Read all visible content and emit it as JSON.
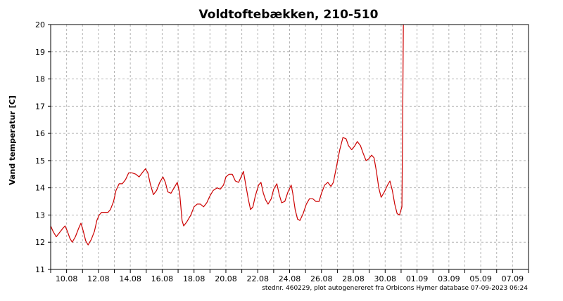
{
  "chart_data": {
    "type": "line",
    "title": "Voldtoftebækken, 210-510",
    "xlabel": "",
    "ylabel": "Vand temperatur [C]",
    "footer": "stednr. 460229, plot autogenereret fra Orbicons Hymer database 07-09-2023 06:24",
    "x_unit": "day of month (August = 9.x, September = 32.x)",
    "xlim": [
      9.0,
      39.0
    ],
    "ylim": [
      11,
      20
    ],
    "y_ticks": [
      11,
      12,
      13,
      14,
      15,
      16,
      17,
      18,
      19,
      20
    ],
    "x_ticks": [
      {
        "label": "10.08",
        "x": 10
      },
      {
        "label": "12.08",
        "x": 12
      },
      {
        "label": "14.08",
        "x": 14
      },
      {
        "label": "16.08",
        "x": 16
      },
      {
        "label": "18.08",
        "x": 18
      },
      {
        "label": "20.08",
        "x": 20
      },
      {
        "label": "22.08",
        "x": 22
      },
      {
        "label": "24.08",
        "x": 24
      },
      {
        "label": "26.08",
        "x": 26
      },
      {
        "label": "28.08",
        "x": 28
      },
      {
        "label": "30.08",
        "x": 30
      },
      {
        "label": "01.09",
        "x": 32
      },
      {
        "label": "03.09",
        "x": 34
      },
      {
        "label": "05.09",
        "x": 36
      },
      {
        "label": "07.09",
        "x": 38
      }
    ],
    "grid": true,
    "line_color": "#cc0000",
    "series": [
      {
        "name": "",
        "points": [
          [
            9.0,
            12.6
          ],
          [
            9.15,
            12.4
          ],
          [
            9.35,
            12.2
          ],
          [
            9.55,
            12.35
          ],
          [
            9.75,
            12.5
          ],
          [
            9.9,
            12.6
          ],
          [
            10.05,
            12.4
          ],
          [
            10.2,
            12.15
          ],
          [
            10.35,
            12.0
          ],
          [
            10.55,
            12.2
          ],
          [
            10.75,
            12.5
          ],
          [
            10.9,
            12.7
          ],
          [
            11.05,
            12.4
          ],
          [
            11.2,
            12.05
          ],
          [
            11.35,
            11.9
          ],
          [
            11.55,
            12.1
          ],
          [
            11.75,
            12.4
          ],
          [
            11.9,
            12.8
          ],
          [
            12.05,
            13.0
          ],
          [
            12.2,
            13.1
          ],
          [
            12.4,
            13.1
          ],
          [
            12.6,
            13.1
          ],
          [
            12.75,
            13.2
          ],
          [
            12.95,
            13.5
          ],
          [
            13.1,
            13.9
          ],
          [
            13.3,
            14.15
          ],
          [
            13.5,
            14.15
          ],
          [
            13.7,
            14.3
          ],
          [
            13.9,
            14.55
          ],
          [
            14.1,
            14.55
          ],
          [
            14.35,
            14.5
          ],
          [
            14.55,
            14.4
          ],
          [
            14.75,
            14.55
          ],
          [
            14.95,
            14.7
          ],
          [
            15.1,
            14.55
          ],
          [
            15.25,
            14.15
          ],
          [
            15.45,
            13.75
          ],
          [
            15.65,
            13.9
          ],
          [
            15.85,
            14.2
          ],
          [
            16.05,
            14.4
          ],
          [
            16.2,
            14.2
          ],
          [
            16.35,
            13.85
          ],
          [
            16.55,
            13.8
          ],
          [
            16.75,
            14.0
          ],
          [
            16.95,
            14.2
          ],
          [
            17.1,
            13.8
          ],
          [
            17.25,
            12.8
          ],
          [
            17.35,
            12.6
          ],
          [
            17.55,
            12.75
          ],
          [
            17.8,
            13.0
          ],
          [
            18.0,
            13.3
          ],
          [
            18.2,
            13.4
          ],
          [
            18.4,
            13.4
          ],
          [
            18.6,
            13.3
          ],
          [
            18.8,
            13.45
          ],
          [
            19.0,
            13.7
          ],
          [
            19.2,
            13.9
          ],
          [
            19.45,
            14.0
          ],
          [
            19.65,
            13.95
          ],
          [
            19.85,
            14.1
          ],
          [
            20.0,
            14.4
          ],
          [
            20.2,
            14.5
          ],
          [
            20.4,
            14.5
          ],
          [
            20.6,
            14.25
          ],
          [
            20.8,
            14.2
          ],
          [
            20.95,
            14.4
          ],
          [
            21.1,
            14.6
          ],
          [
            21.25,
            14.1
          ],
          [
            21.4,
            13.6
          ],
          [
            21.55,
            13.2
          ],
          [
            21.7,
            13.3
          ],
          [
            21.85,
            13.7
          ],
          [
            22.05,
            14.1
          ],
          [
            22.2,
            14.2
          ],
          [
            22.35,
            13.8
          ],
          [
            22.5,
            13.55
          ],
          [
            22.65,
            13.4
          ],
          [
            22.85,
            13.6
          ],
          [
            23.0,
            13.95
          ],
          [
            23.2,
            14.15
          ],
          [
            23.35,
            13.75
          ],
          [
            23.5,
            13.45
          ],
          [
            23.7,
            13.5
          ],
          [
            23.9,
            13.85
          ],
          [
            24.1,
            14.1
          ],
          [
            24.2,
            13.8
          ],
          [
            24.35,
            13.2
          ],
          [
            24.5,
            12.85
          ],
          [
            24.65,
            12.8
          ],
          [
            24.85,
            13.05
          ],
          [
            25.05,
            13.4
          ],
          [
            25.25,
            13.6
          ],
          [
            25.45,
            13.6
          ],
          [
            25.65,
            13.5
          ],
          [
            25.85,
            13.5
          ],
          [
            26.0,
            13.8
          ],
          [
            26.2,
            14.1
          ],
          [
            26.4,
            14.2
          ],
          [
            26.6,
            14.05
          ],
          [
            26.75,
            14.2
          ],
          [
            26.95,
            14.8
          ],
          [
            27.15,
            15.4
          ],
          [
            27.35,
            15.85
          ],
          [
            27.55,
            15.8
          ],
          [
            27.7,
            15.55
          ],
          [
            27.9,
            15.4
          ],
          [
            28.1,
            15.55
          ],
          [
            28.25,
            15.7
          ],
          [
            28.45,
            15.55
          ],
          [
            28.6,
            15.3
          ],
          [
            28.8,
            15.0
          ],
          [
            28.95,
            15.05
          ],
          [
            29.15,
            15.2
          ],
          [
            29.3,
            15.1
          ],
          [
            29.45,
            14.6
          ],
          [
            29.6,
            14.0
          ],
          [
            29.75,
            13.65
          ],
          [
            29.95,
            13.85
          ],
          [
            30.15,
            14.1
          ],
          [
            30.3,
            14.25
          ],
          [
            30.45,
            13.9
          ],
          [
            30.6,
            13.4
          ],
          [
            30.75,
            13.05
          ],
          [
            30.9,
            13.0
          ],
          [
            31.0,
            13.2
          ],
          [
            31.05,
            13.3
          ],
          [
            31.1,
            16.5
          ],
          [
            31.15,
            20.5
          ]
        ]
      }
    ]
  }
}
